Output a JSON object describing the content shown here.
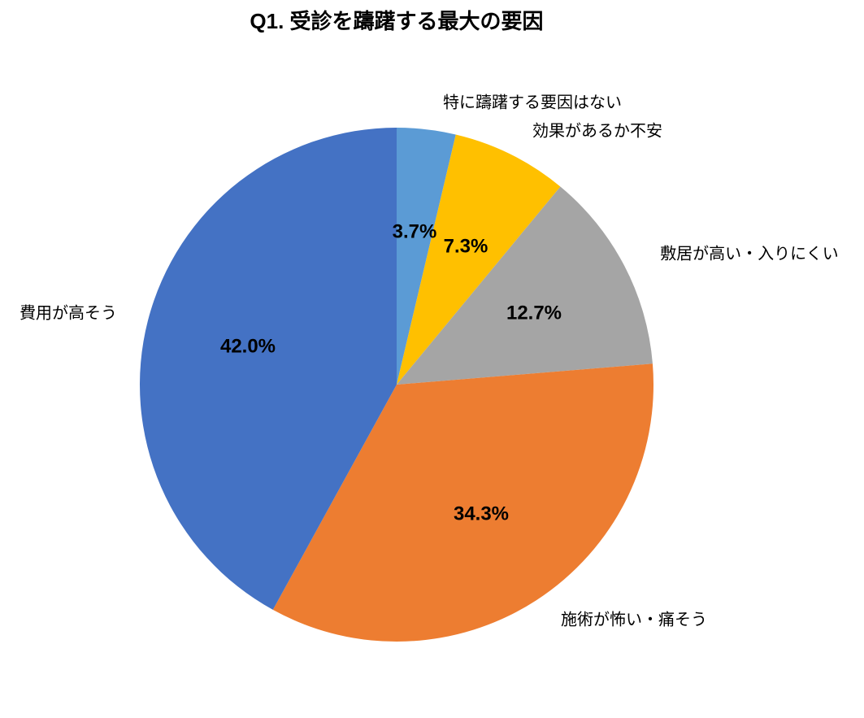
{
  "chart_data": {
    "type": "pie",
    "title": "Q1. 受診を躊躇する最大の要因",
    "categories": [
      "特に躊躇する要因はない",
      "効果があるか不安",
      "敷居が高い・入りにくい",
      "施術が怖い・痛そう",
      "費用が高そう"
    ],
    "values": [
      3.7,
      7.3,
      12.7,
      34.3,
      42.0
    ],
    "value_labels": [
      "3.7%",
      "7.3%",
      "12.7%",
      "34.3%",
      "42.0%"
    ],
    "colors": [
      "#5b9bd5",
      "#ffc000",
      "#a5a5a5",
      "#ed7d31",
      "#4472c4"
    ]
  }
}
